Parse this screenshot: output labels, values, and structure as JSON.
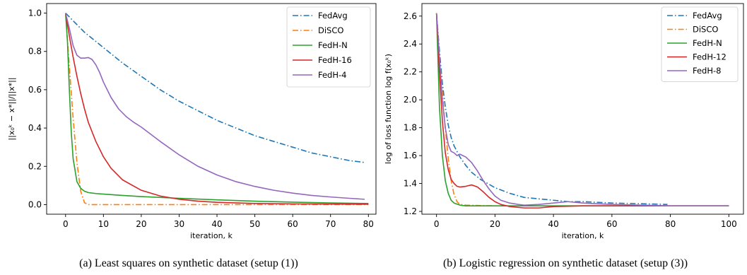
{
  "chart_data": [
    {
      "type": "line",
      "caption": "(a) Least squares on synthetic dataset (setup (1))",
      "xlabel": "iteration, k",
      "ylabel": "||x₀ᵏ − x*||/||x*||",
      "xlim": [
        -5,
        82
      ],
      "ylim": [
        -0.05,
        1.05
      ],
      "xticks": [
        0,
        10,
        20,
        30,
        40,
        50,
        60,
        70,
        80
      ],
      "yticks": [
        0.0,
        0.2,
        0.4,
        0.6,
        0.8,
        1.0
      ],
      "ytick_labels": [
        "0.0",
        "0.2",
        "0.4",
        "0.6",
        "0.8",
        "1.0"
      ],
      "grid": false,
      "legend_position": "top-right",
      "series": [
        {
          "name": "FedAvg",
          "color": "#1f77b4",
          "style": "dashdot",
          "x": [
            0,
            5,
            10,
            15,
            20,
            25,
            30,
            35,
            40,
            45,
            50,
            55,
            60,
            65,
            70,
            75,
            79
          ],
          "y": [
            1.0,
            0.9,
            0.82,
            0.74,
            0.67,
            0.6,
            0.54,
            0.49,
            0.44,
            0.4,
            0.36,
            0.33,
            0.3,
            0.27,
            0.25,
            0.23,
            0.22
          ]
        },
        {
          "name": "DiSCO",
          "color": "#ff7f0e",
          "style": "dashdot",
          "x": [
            0,
            1,
            2,
            3,
            4,
            5,
            6,
            10,
            20,
            40,
            60,
            80
          ],
          "y": [
            1.0,
            0.72,
            0.45,
            0.22,
            0.07,
            0.01,
            0.0,
            0.0,
            0.0,
            0.0,
            0.0,
            0.0
          ]
        },
        {
          "name": "FedH-N",
          "color": "#2ca02c",
          "style": "solid",
          "x": [
            0,
            0.5,
            1,
            1.5,
            2,
            3,
            4,
            5,
            6,
            8,
            10,
            15,
            20,
            30,
            40,
            50,
            60,
            70,
            80
          ],
          "y": [
            1.0,
            0.85,
            0.6,
            0.38,
            0.24,
            0.12,
            0.085,
            0.07,
            0.063,
            0.058,
            0.055,
            0.048,
            0.042,
            0.033,
            0.025,
            0.018,
            0.013,
            0.009,
            0.006
          ]
        },
        {
          "name": "FedH-16",
          "color": "#d62728",
          "style": "solid",
          "x": [
            0,
            1,
            2,
            3,
            4,
            5,
            6,
            8,
            10,
            12,
            15,
            20,
            25,
            30,
            35,
            40,
            50,
            60,
            70,
            80
          ],
          "y": [
            1.0,
            0.88,
            0.77,
            0.67,
            0.58,
            0.5,
            0.43,
            0.33,
            0.25,
            0.19,
            0.13,
            0.075,
            0.045,
            0.028,
            0.018,
            0.012,
            0.006,
            0.004,
            0.003,
            0.002
          ]
        },
        {
          "name": "FedH-4",
          "color": "#9467bd",
          "style": "solid",
          "x": [
            0,
            1,
            2,
            3,
            4,
            5,
            6,
            7,
            8,
            9,
            10,
            12,
            14,
            16,
            18,
            20,
            22,
            25,
            30,
            35,
            40,
            45,
            50,
            55,
            60,
            65,
            70,
            75,
            79
          ],
          "y": [
            1.0,
            0.92,
            0.83,
            0.78,
            0.765,
            0.765,
            0.768,
            0.758,
            0.73,
            0.69,
            0.64,
            0.56,
            0.5,
            0.46,
            0.43,
            0.405,
            0.375,
            0.33,
            0.26,
            0.2,
            0.155,
            0.12,
            0.095,
            0.075,
            0.06,
            0.048,
            0.04,
            0.033,
            0.028
          ]
        }
      ]
    },
    {
      "type": "line",
      "caption": "(b) Logistic regression on synthetic dataset (setup (3))",
      "xlabel": "iteration, k",
      "ylabel": "log of loss function log f(x₀ᵏ)",
      "xlim": [
        -5,
        105
      ],
      "ylim": [
        1.18,
        2.69
      ],
      "xticks": [
        0,
        20,
        40,
        60,
        80,
        100
      ],
      "yticks": [
        1.2,
        1.4,
        1.6,
        1.8,
        2.0,
        2.2,
        2.4,
        2.6
      ],
      "ytick_labels": [
        "1.2",
        "1.4",
        "1.6",
        "1.8",
        "2.0",
        "2.2",
        "2.4",
        "2.6"
      ],
      "grid": false,
      "legend_position": "top-right",
      "series": [
        {
          "name": "FedAvg",
          "color": "#1f77b4",
          "style": "dashdot",
          "x": [
            0,
            1,
            2,
            3,
            4,
            5,
            6,
            8,
            10,
            12,
            15,
            20,
            25,
            30,
            35,
            40,
            45,
            50,
            60,
            70,
            79
          ],
          "y": [
            2.62,
            2.35,
            2.12,
            1.95,
            1.82,
            1.73,
            1.67,
            1.59,
            1.53,
            1.48,
            1.43,
            1.37,
            1.33,
            1.3,
            1.29,
            1.28,
            1.27,
            1.27,
            1.26,
            1.255,
            1.25
          ]
        },
        {
          "name": "DiSCO",
          "color": "#ff7f0e",
          "style": "dashdot",
          "x": [
            0,
            1,
            2,
            3,
            4,
            5,
            6,
            7,
            8,
            10,
            15,
            20
          ],
          "y": [
            2.62,
            2.3,
            2.05,
            1.8,
            1.58,
            1.42,
            1.32,
            1.27,
            1.25,
            1.245,
            1.242,
            1.24
          ]
        },
        {
          "name": "FedH-N",
          "color": "#2ca02c",
          "style": "solid",
          "x": [
            0,
            1,
            2,
            3,
            4,
            5,
            6,
            8,
            10,
            15,
            20,
            30,
            40,
            50,
            60,
            70,
            80,
            90,
            100
          ],
          "y": [
            2.62,
            1.95,
            1.6,
            1.42,
            1.33,
            1.28,
            1.26,
            1.245,
            1.24,
            1.24,
            1.24,
            1.24,
            1.24,
            1.24,
            1.24,
            1.24,
            1.24,
            1.24,
            1.24
          ]
        },
        {
          "name": "FedH-12",
          "color": "#d62728",
          "style": "solid",
          "x": [
            0,
            1,
            2,
            3,
            4,
            5,
            6,
            7,
            8,
            10,
            12,
            14,
            16,
            18,
            20,
            22,
            25,
            30,
            35,
            40,
            50,
            60,
            70,
            80,
            90,
            100
          ],
          "y": [
            2.62,
            2.2,
            1.85,
            1.62,
            1.5,
            1.43,
            1.4,
            1.38,
            1.375,
            1.38,
            1.39,
            1.375,
            1.34,
            1.3,
            1.27,
            1.25,
            1.235,
            1.225,
            1.225,
            1.235,
            1.24,
            1.24,
            1.24,
            1.24,
            1.24,
            1.24
          ]
        },
        {
          "name": "FedH-8",
          "color": "#9467bd",
          "style": "solid",
          "x": [
            0,
            1,
            2,
            3,
            4,
            5,
            6,
            7,
            8,
            9,
            10,
            11,
            12,
            14,
            16,
            18,
            20,
            22,
            25,
            28,
            30,
            35,
            40,
            45,
            50,
            60,
            70,
            80,
            90,
            100
          ],
          "y": [
            2.62,
            2.3,
            2.0,
            1.8,
            1.68,
            1.63,
            1.62,
            1.6,
            1.61,
            1.6,
            1.59,
            1.57,
            1.55,
            1.49,
            1.42,
            1.36,
            1.31,
            1.28,
            1.26,
            1.25,
            1.245,
            1.25,
            1.26,
            1.27,
            1.26,
            1.25,
            1.245,
            1.24,
            1.24,
            1.24
          ]
        }
      ]
    }
  ]
}
